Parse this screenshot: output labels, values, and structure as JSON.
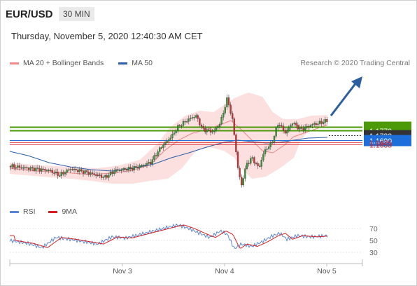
{
  "header": {
    "pair": "EUR/USD",
    "timeframe": "30 MIN",
    "datetime": "Thursday, November 5, 2020 12:40:30 AM CET"
  },
  "legend": {
    "ma20_label": "MA 20 + Bollinger Bands",
    "ma50_label": "MA 50",
    "copyright": "Research © 2020 Trading Central"
  },
  "levels": [
    {
      "value": "1.1795",
      "kind": "target"
    },
    {
      "value": "1.1770",
      "kind": "target"
    },
    {
      "value": "1.1732",
      "kind": "current"
    },
    {
      "value": "1.1690",
      "kind": "pivot"
    },
    {
      "value": "1.1675",
      "kind": "support"
    },
    {
      "value": "1.1655",
      "kind": "support"
    }
  ],
  "rsi_legend": {
    "rsi_label": "RSI",
    "ma_label": "9MA"
  },
  "rsi_axis": [
    "70",
    "50",
    "30"
  ],
  "x_axis": [
    "Nov 3",
    "Nov 4",
    "Nov 5"
  ],
  "colors": {
    "target": "#4c9a0a",
    "pivot": "#1e6fd9",
    "support": "#d02020",
    "current": "#333333",
    "bollinger": "#f7c6c6",
    "ma20": "#e48a8a",
    "ma50": "#2b5fa8",
    "rsi": "#5b86d8",
    "rsi_ma": "#d42020",
    "up_candle": "#2f9a2f",
    "down_candle": "#d03030",
    "arrow": "#2c5fa0"
  }
}
